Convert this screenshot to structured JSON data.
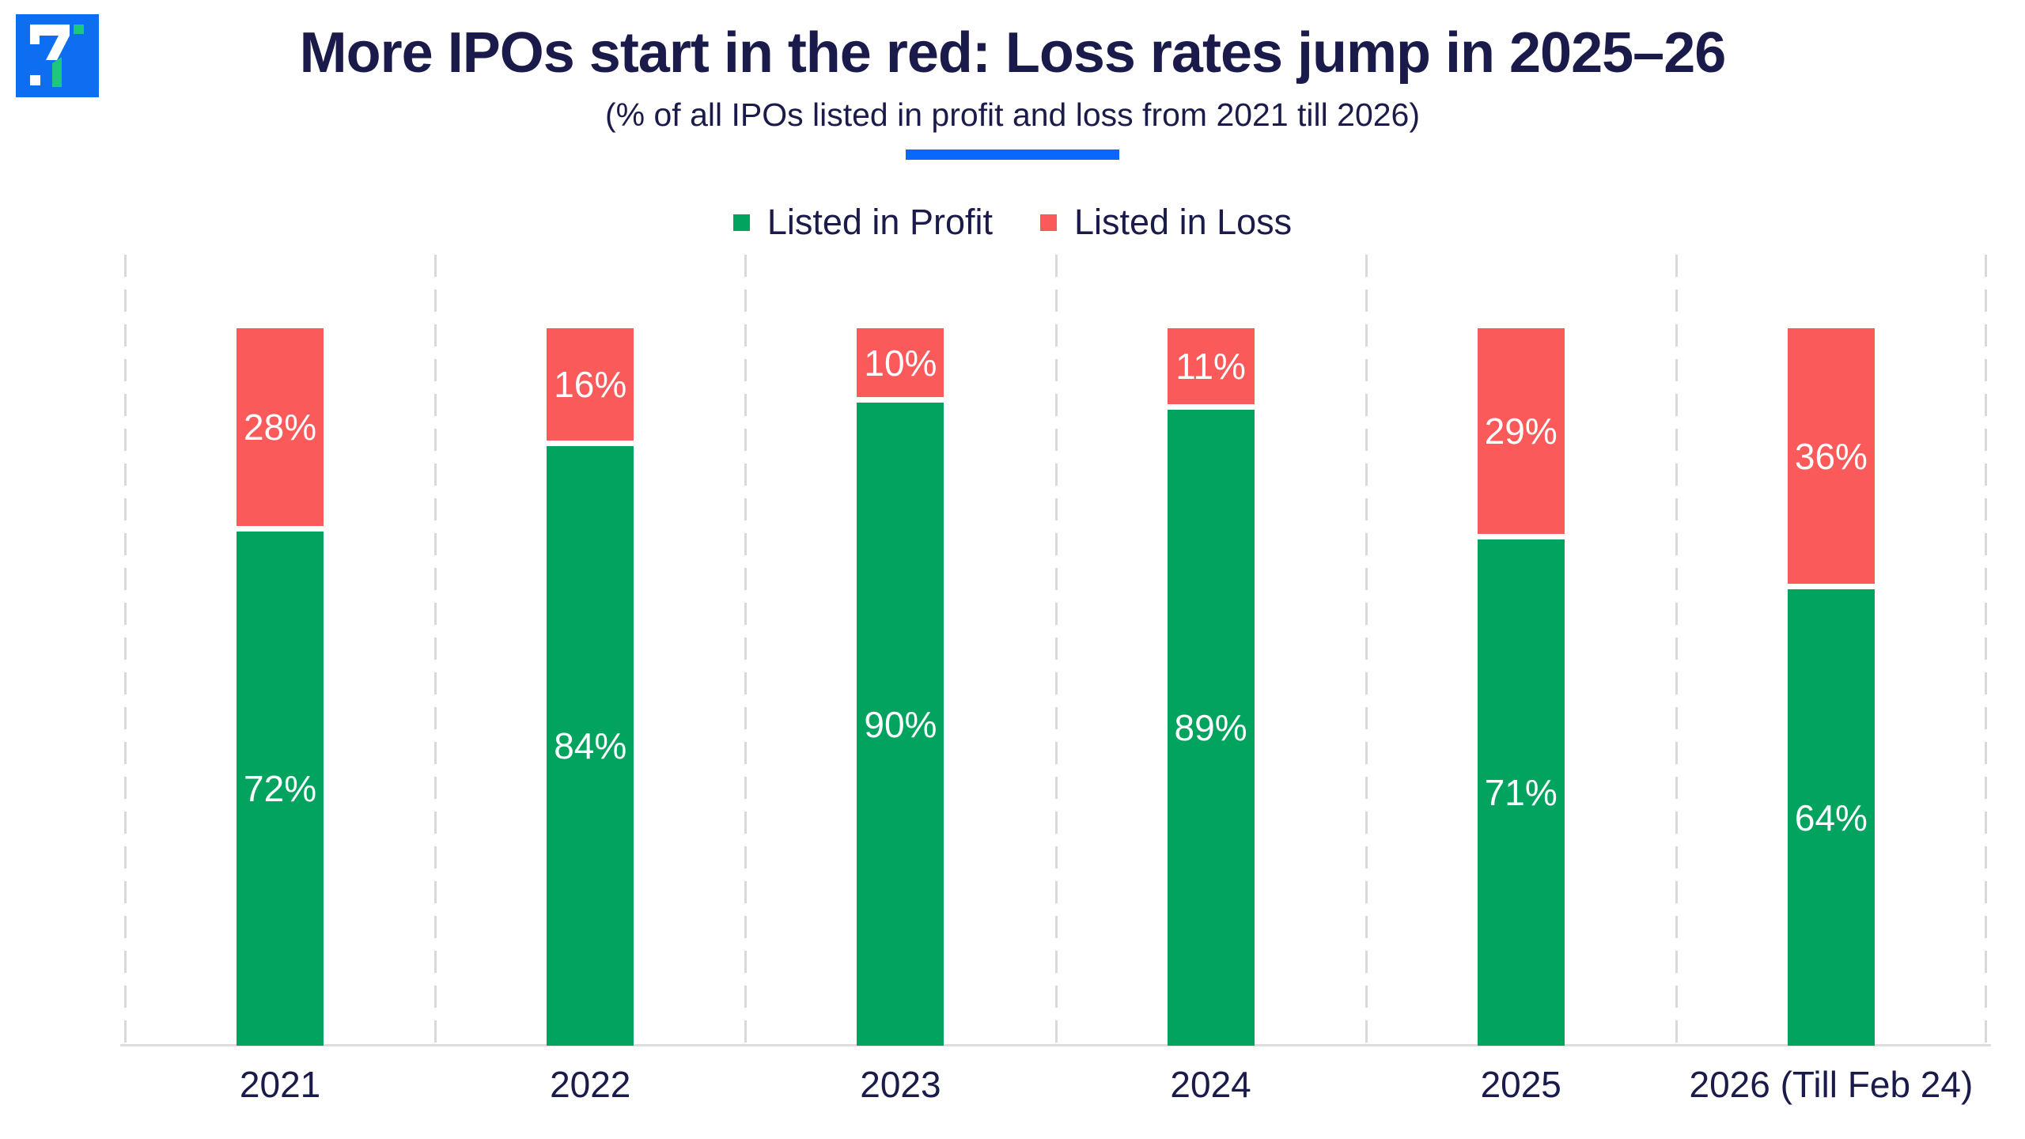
{
  "header": {
    "title": "More IPOs start in the red: Loss rates jump in 2025–26",
    "subtitle": "(% of all IPOs listed in profit and loss from 2021 till 2026)"
  },
  "logo": {
    "name": "brand-logo",
    "background": "#0d6ef2",
    "foreground": "#ffffff",
    "accent": "#1fc77d"
  },
  "colors": {
    "navy": "#1b1b4b",
    "accent_blue": "#0868fa",
    "profit_green": "#01a35f",
    "loss_red": "#fa5b5a",
    "grid_gray": "#d9d9d9"
  },
  "chart_data": {
    "type": "bar",
    "stacked": true,
    "orientation": "vertical",
    "title": "More IPOs start in the red: Loss rates jump in 2025–26",
    "subtitle": "(% of all IPOs listed in profit and loss from 2021 till 2026)",
    "categories": [
      "2021",
      "2022",
      "2023",
      "2024",
      "2025",
      "2026 (Till Feb 24)"
    ],
    "series": [
      {
        "name": "Listed in Profit",
        "color": "#01a35f",
        "values": [
          72,
          84,
          90,
          89,
          71,
          64
        ]
      },
      {
        "name": "Listed in Loss",
        "color": "#fa5b5a",
        "values": [
          28,
          16,
          10,
          11,
          29,
          36
        ]
      }
    ],
    "value_suffix": "%",
    "ylim": [
      0,
      100
    ],
    "legend_position": "top",
    "grid": "dashed-vertical",
    "data_labels": "inside-center"
  }
}
